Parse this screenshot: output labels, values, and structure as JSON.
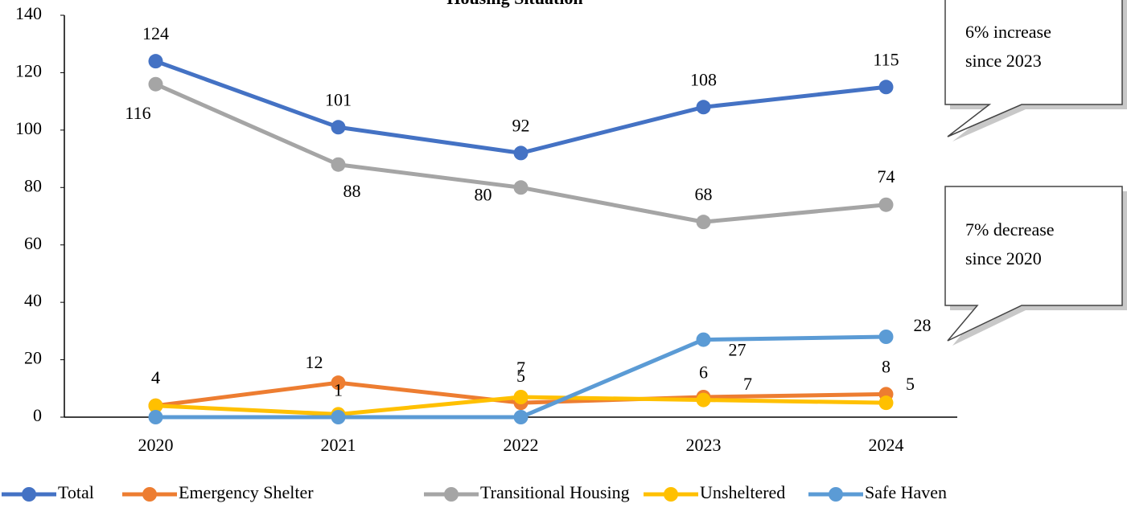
{
  "chart_data": {
    "type": "line",
    "title": "Housing Situation",
    "categories": [
      "2020",
      "2021",
      "2022",
      "2023",
      "2024"
    ],
    "series": [
      {
        "name": "Total",
        "color": "#4472c4",
        "values": [
          124,
          101,
          92,
          108,
          115
        ]
      },
      {
        "name": "Emergency Shelter",
        "color": "#ed7d31",
        "values": [
          4,
          12,
          5,
          7,
          8
        ]
      },
      {
        "name": "Transitional Housing",
        "color": "#a5a5a5",
        "values": [
          116,
          88,
          80,
          68,
          74
        ]
      },
      {
        "name": "Unsheltered",
        "color": "#ffc000",
        "values": [
          4,
          1,
          7,
          6,
          5
        ]
      },
      {
        "name": "Safe Haven",
        "color": "#5b9bd5",
        "values": [
          0,
          0,
          0,
          27,
          28
        ],
        "value_labels": [
          null,
          null,
          null,
          "27",
          "28"
        ]
      }
    ],
    "ylim": [
      0,
      140
    ],
    "yticks": [
      0,
      20,
      40,
      60,
      80,
      100,
      120,
      140
    ],
    "legend": "bottom",
    "annotations": [
      {
        "lines": [
          "6% increase",
          "since 2023"
        ]
      },
      {
        "lines": [
          "7% decrease",
          "since 2020"
        ]
      }
    ]
  }
}
